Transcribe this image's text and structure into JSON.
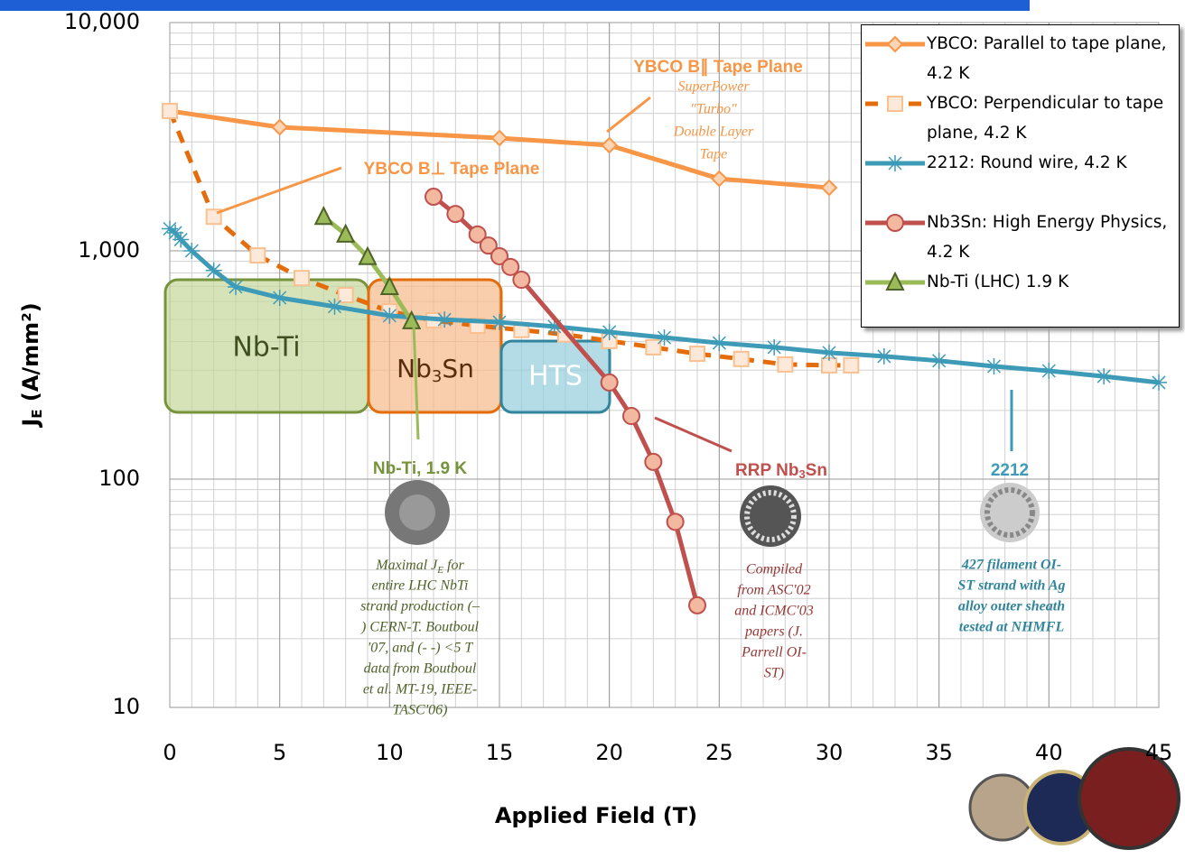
{
  "chart_data": {
    "type": "line",
    "x_label": "Applied Field (T)",
    "y_label": {
      "main": "J",
      "sub": "E",
      "rest": " (A/mm²)"
    },
    "xlim": [
      0,
      45
    ],
    "xticks": [
      0,
      5,
      10,
      15,
      20,
      25,
      30,
      35,
      40,
      45
    ],
    "ylim": [
      10,
      10000
    ],
    "log_y": true,
    "yticks": [
      10,
      100,
      {
        "value": 1000,
        "label": "1,000"
      },
      {
        "value": 10000,
        "label": "10,000"
      }
    ],
    "grid": true,
    "minor_grid": true,
    "legend": "top-right",
    "series": [
      {
        "name": "YBCO: Parallel to tape plane, 4.2 K",
        "color": "#f79646",
        "marker": "diamond",
        "dashed": false,
        "x": [
          0,
          5,
          15,
          20,
          25,
          30
        ],
        "values": [
          4100,
          3480,
          3120,
          2900,
          2070,
          1890
        ]
      },
      {
        "name": "YBCO: Perpendicular to tape plane, 4.2 K",
        "color": "#e46c0a",
        "marker": "square",
        "dashed": true,
        "x": [
          0,
          2,
          4,
          6,
          8,
          10,
          12,
          14,
          16,
          18,
          20,
          22,
          24,
          26,
          28,
          30,
          31
        ],
        "values": [
          4100,
          1410,
          955,
          760,
          640,
          543,
          496,
          470,
          450,
          430,
          403,
          378,
          354,
          336,
          318,
          315,
          315
        ]
      },
      {
        "name": "2212: Round wire, 4.2 K",
        "color": "#3d9bb8",
        "marker": "asterisk",
        "dashed": false,
        "x": [
          0,
          0.25,
          0.5,
          1,
          2,
          3,
          5,
          7.5,
          10,
          12.5,
          15,
          17.5,
          20,
          22.5,
          25,
          27.5,
          30,
          32.5,
          35,
          37.5,
          40,
          42.5,
          45
        ],
        "values": [
          1250,
          1200,
          1120,
          1000,
          820,
          695,
          623,
          570,
          520,
          500,
          487,
          466,
          441,
          417,
          395,
          378,
          358,
          345,
          330,
          312,
          298,
          282,
          265
        ]
      },
      {
        "name": "Nb3Sn: High Energy Physics, 4.2 K",
        "color": "#c0504d",
        "marker": "circle",
        "dashed": false,
        "x": [
          12,
          13,
          14,
          14.5,
          15,
          15.5,
          16,
          20,
          21,
          22,
          23,
          24
        ],
        "values": [
          1726,
          1450,
          1180,
          1055,
          947,
          850,
          747,
          265,
          189,
          119,
          65,
          28
        ]
      },
      {
        "name": "Nb-Ti (LHC) 1.9 K",
        "color": "#9bbb59",
        "marker": "triangle",
        "dashed": false,
        "x": [
          7,
          8,
          9,
          10,
          11
        ],
        "values": [
          1410,
          1180,
          940,
          695,
          492
        ]
      }
    ],
    "regions": {
      "nbti": "Nb-Ti",
      "nb3sn": {
        "main": "Nb",
        "sub": "3",
        "rest": "Sn"
      },
      "hts": "HTS"
    },
    "annotations": {
      "ybco_par": "YBCO B∥ Tape Plane",
      "superpower": [
        "SuperPower",
        "\"Turbo\"",
        "Double Layer",
        "Tape"
      ],
      "ybco_perp": "YBCO B⊥ Tape Plane",
      "nbti": "Nb-Ti, 1.9 K",
      "rrp": {
        "main": "RRP Nb",
        "sub": "3",
        "rest": "Sn"
      },
      "bi2212": "2212",
      "nbti_note": {
        "lead": "Maximal J",
        "sub": "E",
        "lead_end": " for",
        "lines": [
          "entire LHC NbTi",
          "strand production (–",
          ") CERN-T. Boutboul",
          "'07,  and (- -) <5 T",
          "data from Boutboul",
          "et al. MT-19, IEEE-",
          "TASC'06)"
        ]
      },
      "rrp_note": [
        "Compiled",
        "from ASC'02",
        "and ICMC'03",
        "papers (J.",
        "Parrell OI-",
        "ST)"
      ],
      "bi2212_note": [
        "427 filament OI-",
        "ST strand with Ag",
        "alloy outer sheath",
        "tested at NHMFL"
      ]
    }
  }
}
